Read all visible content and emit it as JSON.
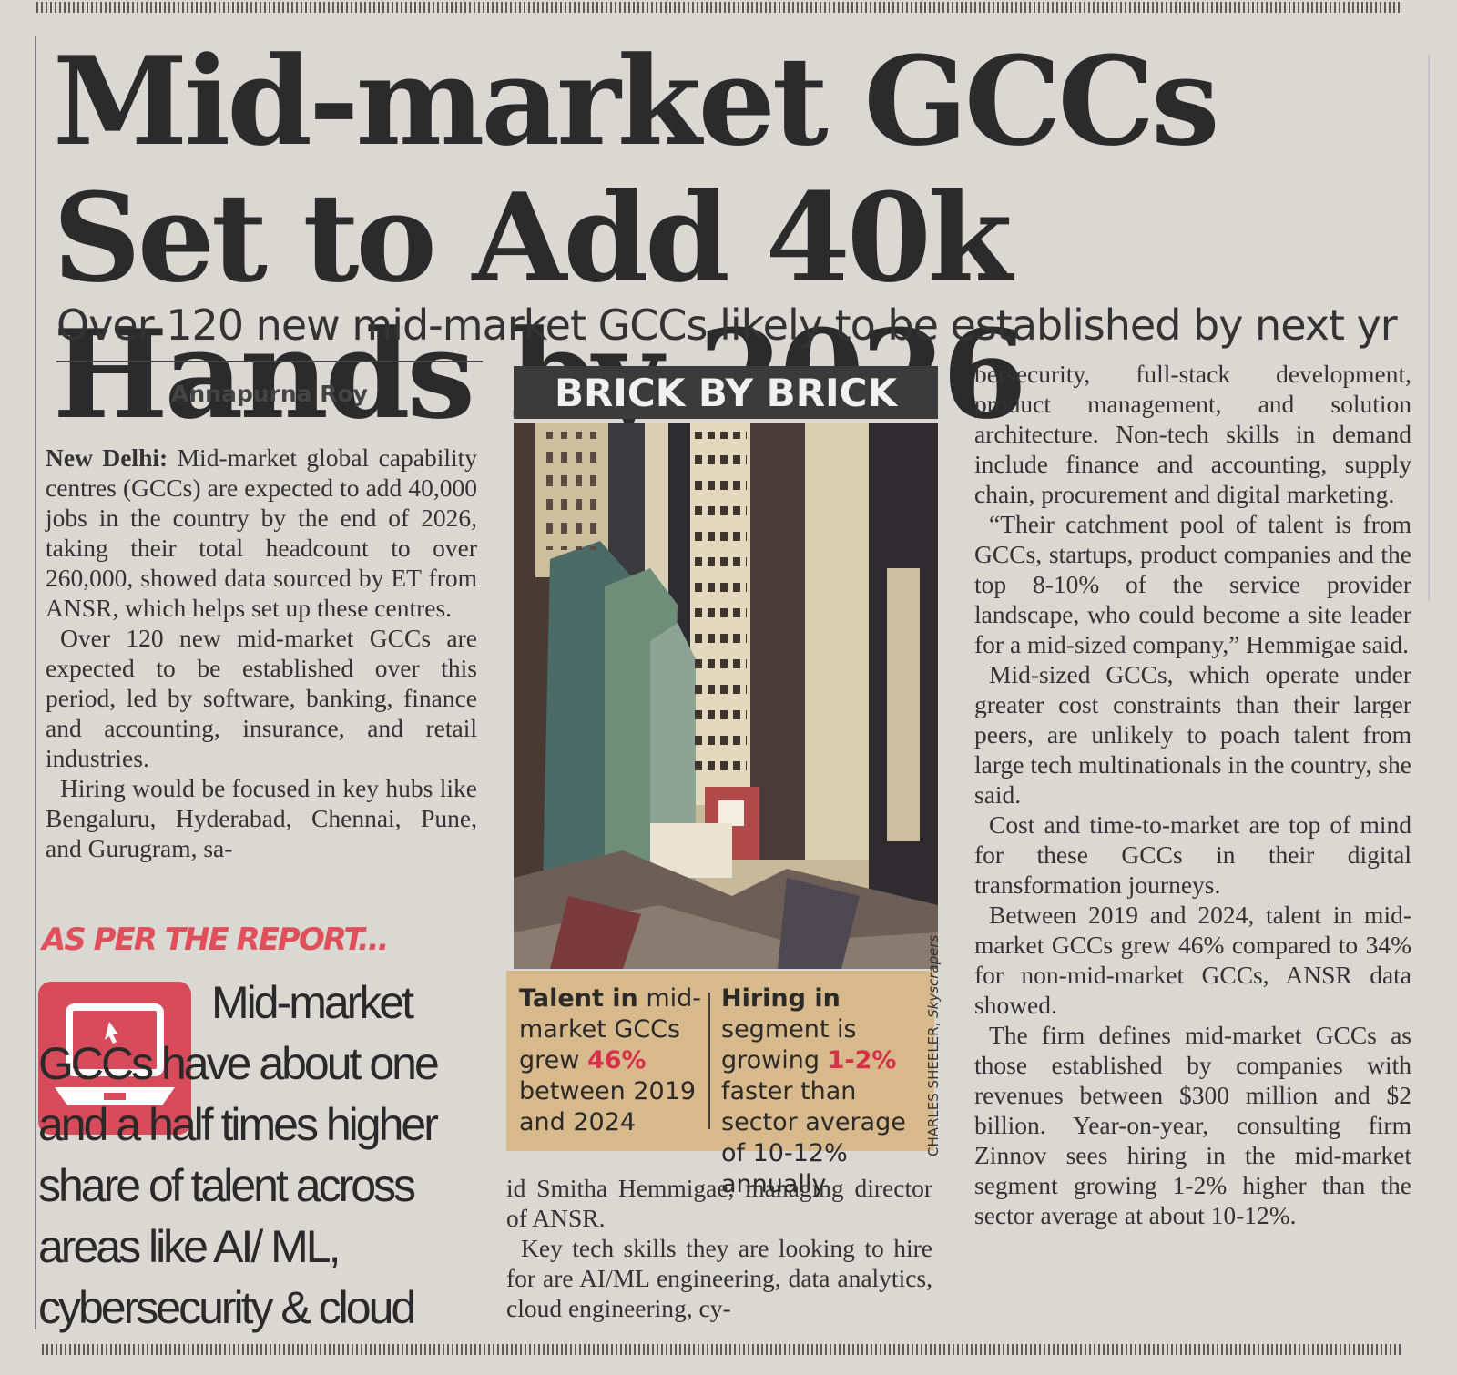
{
  "headline": "Mid-market GCCs Set to Add 40k Hands by 2026",
  "subhead": "Over 120 new mid-market GCCs likely to be established by next yr",
  "byline": "Annapurna Roy",
  "body": {
    "dateline": "New Delhi:",
    "p1": "Mid-market global capability centres (GCCs) are expected to add 40,000 jobs in the country by the end of 2026, taking their total headcount to over 260,000, showed data sourced by ET from ANSR, which helps set up these centres.",
    "p2": "Over 120 new mid-market GCCs are expected to be established over this period, led by software, banking, finance and accounting, insurance, and retail industries.",
    "p3": "Hiring would be focused in key hubs like Bengaluru, Hyderabad, Chennai, Pune, and Gurugram, sa-",
    "p3_cont": "id Smitha Hemmigae, managing director of ANSR.",
    "p4": "Key tech skills they are looking to hire for are AI/ML engineering, data analytics, cloud engineering, cy-",
    "p4_cont": "bersecurity, full-stack development, product management, and solution architecture. Non-tech skills in demand include finance and accounting, supply chain, procurement and digital marketing.",
    "p5": "“Their catchment pool of talent is from GCCs, startups, product companies and the top 8-10% of the service provider landscape, who could become a site leader for a mid-sized company,” Hemmigae said.",
    "p6": "Mid-sized GCCs, which operate under greater cost constraints than their larger peers, are unlikely to poach talent from large tech multinationals in the country, she said.",
    "p7": "Cost and time-to-market are top of mind for these GCCs in their digital transformation journeys.",
    "p8": "Between 2019 and 2024, talent in mid-market GCCs grew 46% compared to 34% for non-mid-market GCCs, ANSR data showed.",
    "p9": "The firm defines mid-market GCCs as those established by companies with revenues between $300 million and $2 billion. Year-on-year, consulting firm Zinnov sees hiring in the mid-market segment growing 1-2% higher than the sector average at about 10-12%."
  },
  "report": {
    "heading": "AS PER THE REPORT...",
    "text": "Mid-market GCCs have about one and a half times higher share of talent across areas like AI/ ML, cybersecurity & cloud",
    "icon": "laptop-icon",
    "color": "#e0505a"
  },
  "graphic": {
    "title": "BRICK BY BRICK",
    "stat1": {
      "bold": "Talent in",
      "pre": "mid-market GCCs grew",
      "hl": "46%",
      "post": "between 2019 and 2024"
    },
    "stat2": {
      "bold": "Hiring in",
      "pre": "segment is growing",
      "hl": "1-2%",
      "post": "faster than sector average of 10-12% annually"
    },
    "credit": "CHARLES SHEELER,",
    "credit_title": "Skyscrapers",
    "highlight_color": "#d8304a"
  }
}
